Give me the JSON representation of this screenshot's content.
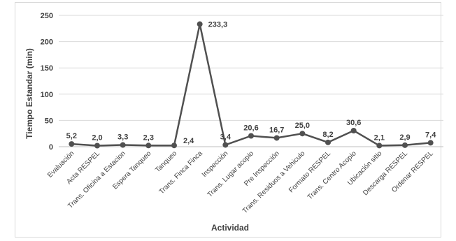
{
  "chart_data": {
    "type": "line",
    "title": "",
    "xlabel": "Actividad",
    "ylabel": "Tiempo Estandar (min)",
    "ylim": [
      0,
      250
    ],
    "yticks": [
      "0",
      "50",
      "100",
      "150",
      "200",
      "250"
    ],
    "grid": true,
    "legend": "none",
    "categories": [
      "Evaluación",
      "Acta RESPEL",
      "Trans. Oficina a Estacion",
      "Espera Tanqueo",
      "Tanqueo",
      "Trans. Finca Finca",
      "Inspección",
      "Trans. Lugar acopio",
      "Pre Inspección",
      "Trans. Residuos a Vehiculo",
      "Formato RESPEL",
      "Trans. Centro Acopio",
      "Ubicación sitio",
      "Descarga RESPEL",
      "Ordenar RESPEL"
    ],
    "series": [
      {
        "values": [
          5.2,
          2.0,
          3.3,
          2.3,
          2.4,
          233.3,
          3.4,
          20.6,
          16.7,
          25.0,
          8.2,
          30.6,
          2.1,
          2.9,
          7.4
        ],
        "labels": [
          "5,2",
          "2,0",
          "3,3",
          "2,3",
          "2,4",
          "233,3",
          "3,4",
          "20,6",
          "16,7",
          "25,0",
          "8,2",
          "30,6",
          "2,1",
          "2,9",
          "7,4"
        ],
        "color": "#505050"
      }
    ]
  }
}
